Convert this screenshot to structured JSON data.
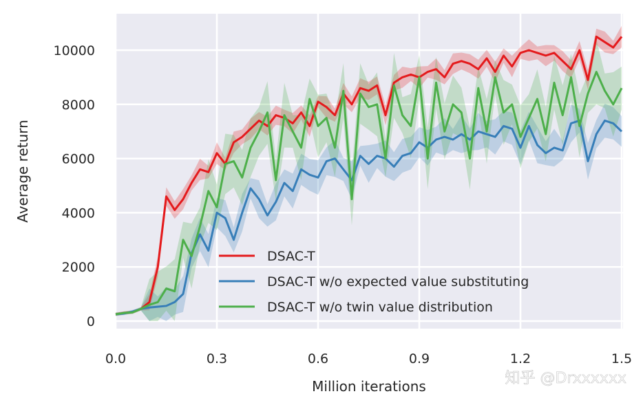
{
  "chart_data": {
    "type": "line",
    "title": "",
    "xlabel": "Million iterations",
    "ylabel": "Average return",
    "xlim": [
      0.0,
      1.5
    ],
    "ylim": [
      -300,
      11200
    ],
    "xticks": [
      "0.0",
      "0.3",
      "0.6",
      "0.9",
      "1.2",
      "1.5"
    ],
    "xtick_values": [
      0.0,
      0.3,
      0.6,
      0.9,
      1.2,
      1.5
    ],
    "yticks": [
      "0",
      "2000",
      "4000",
      "6000",
      "8000",
      "10000"
    ],
    "ytick_values": [
      0,
      2000,
      4000,
      6000,
      8000,
      10000
    ],
    "grid": true,
    "background": "#EAEAF2",
    "legend_placement": "lower-center",
    "x": [
      0,
      0.025,
      0.05,
      0.075,
      0.1,
      0.125,
      0.15,
      0.175,
      0.2,
      0.225,
      0.25,
      0.275,
      0.3,
      0.325,
      0.35,
      0.375,
      0.4,
      0.425,
      0.45,
      0.475,
      0.5,
      0.525,
      0.55,
      0.575,
      0.6,
      0.625,
      0.65,
      0.675,
      0.7,
      0.725,
      0.75,
      0.775,
      0.8,
      0.825,
      0.85,
      0.875,
      0.9,
      0.925,
      0.95,
      0.975,
      1.0,
      1.025,
      1.05,
      1.075,
      1.1,
      1.125,
      1.15,
      1.175,
      1.2,
      1.225,
      1.25,
      1.275,
      1.3,
      1.325,
      1.35,
      1.375,
      1.4,
      1.425,
      1.45,
      1.475,
      1.5
    ],
    "series": [
      {
        "name": "DSAC-T",
        "color": "#e41a1c",
        "band": 400,
        "values": [
          250,
          300,
          330,
          450,
          700,
          2000,
          4600,
          4100,
          4500,
          5100,
          5600,
          5500,
          6200,
          5800,
          6600,
          6800,
          7100,
          7400,
          7200,
          7600,
          7500,
          7300,
          7700,
          7200,
          8100,
          7900,
          7600,
          8400,
          8000,
          8600,
          8500,
          8700,
          7600,
          8800,
          9000,
          9100,
          9000,
          9200,
          9300,
          9000,
          9500,
          9600,
          9500,
          9300,
          9700,
          9200,
          9800,
          9400,
          9900,
          10000,
          9900,
          9800,
          9900,
          9600,
          9300,
          10000,
          8900,
          10500,
          10300,
          10100,
          10500
        ]
      },
      {
        "name": "DSAC-T w/o expected value substituting",
        "color": "#377eb8",
        "band": 700,
        "values": [
          250,
          280,
          350,
          450,
          500,
          530,
          560,
          700,
          1000,
          2500,
          3200,
          2600,
          4000,
          3800,
          3000,
          4000,
          4900,
          4500,
          3900,
          4400,
          5100,
          4800,
          5600,
          5400,
          5300,
          5900,
          6000,
          5600,
          5200,
          6100,
          5800,
          6100,
          6000,
          5700,
          6100,
          6200,
          6600,
          6400,
          6700,
          6800,
          6700,
          6900,
          6700,
          7000,
          6900,
          6800,
          7200,
          7100,
          6400,
          7200,
          6500,
          6200,
          6400,
          6300,
          7300,
          7400,
          5900,
          6900,
          7400,
          7300,
          7000
        ]
      },
      {
        "name": "DSAC-T w/o twin value distribution",
        "color": "#4daf4a",
        "band": 1200,
        "values": [
          250,
          300,
          320,
          450,
          600,
          700,
          1200,
          1100,
          3000,
          2400,
          3500,
          4800,
          4200,
          5800,
          5900,
          5300,
          6400,
          7000,
          7700,
          5200,
          7600,
          7000,
          6400,
          8200,
          7200,
          7500,
          6400,
          8500,
          4500,
          8400,
          7900,
          8000,
          6000,
          8700,
          7600,
          7200,
          9000,
          6000,
          8800,
          7000,
          8000,
          7700,
          6000,
          8600,
          7000,
          9000,
          7700,
          8000,
          6800,
          7500,
          8200,
          6900,
          8800,
          7600,
          9000,
          7200,
          8400,
          9200,
          8500,
          8000,
          8600
        ]
      }
    ]
  },
  "watermark": "知乎 @Drxxxxxx"
}
